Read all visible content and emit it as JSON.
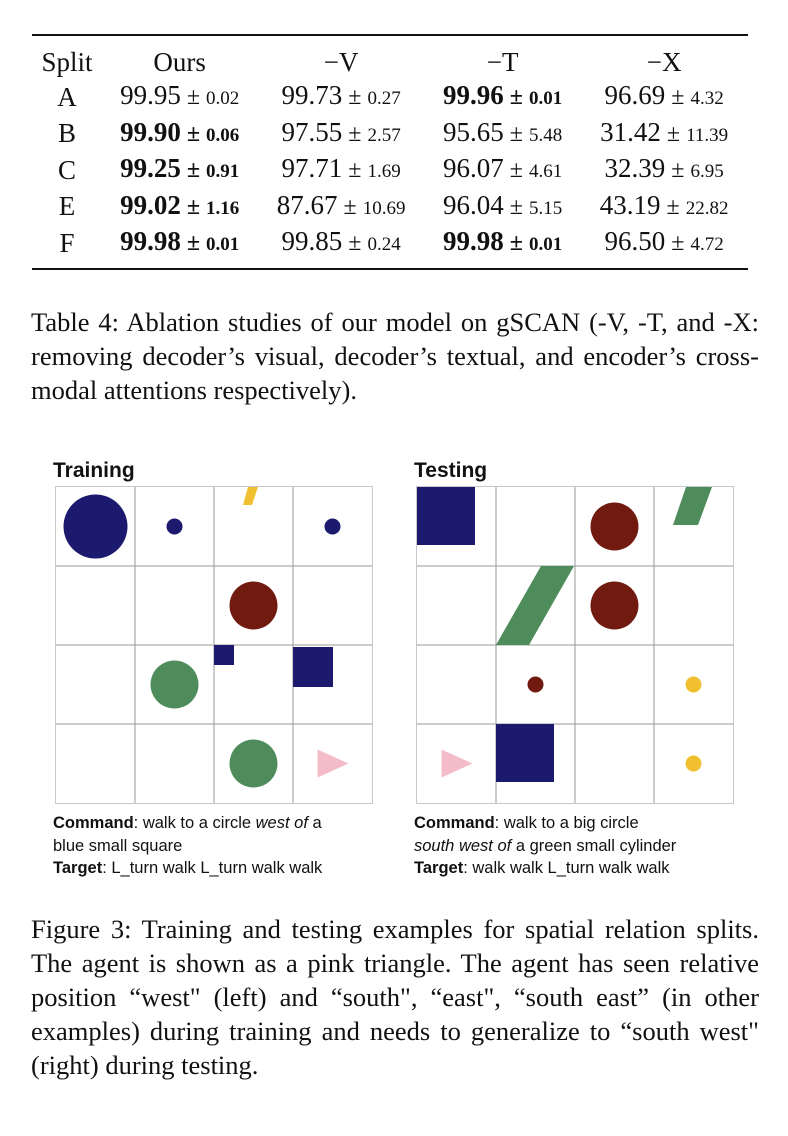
{
  "table": {
    "headers": [
      "Split",
      "Ours",
      "−V",
      "−T",
      "−X"
    ],
    "rows": [
      {
        "split": "A",
        "cells": [
          {
            "v": "99.95",
            "sd": "0.02",
            "best": false
          },
          {
            "v": "99.73",
            "sd": "0.27",
            "best": false
          },
          {
            "v": "99.96",
            "sd": "0.01",
            "best": true
          },
          {
            "v": "96.69",
            "sd": "4.32",
            "best": false
          }
        ]
      },
      {
        "split": "B",
        "cells": [
          {
            "v": "99.90",
            "sd": "0.06",
            "best": true
          },
          {
            "v": "97.55",
            "sd": "2.57",
            "best": false
          },
          {
            "v": "95.65",
            "sd": "5.48",
            "best": false
          },
          {
            "v": "31.42",
            "sd": "11.39",
            "best": false
          }
        ]
      },
      {
        "split": "C",
        "cells": [
          {
            "v": "99.25",
            "sd": "0.91",
            "best": true
          },
          {
            "v": "97.71",
            "sd": "1.69",
            "best": false
          },
          {
            "v": "96.07",
            "sd": "4.61",
            "best": false
          },
          {
            "v": "32.39",
            "sd": "6.95",
            "best": false
          }
        ]
      },
      {
        "split": "E",
        "cells": [
          {
            "v": "99.02",
            "sd": "1.16",
            "best": true
          },
          {
            "v": "87.67",
            "sd": "10.69",
            "best": false
          },
          {
            "v": "96.04",
            "sd": "5.15",
            "best": false
          },
          {
            "v": "43.19",
            "sd": "22.82",
            "best": false
          }
        ]
      },
      {
        "split": "F",
        "cells": [
          {
            "v": "99.98",
            "sd": "0.01",
            "best": true
          },
          {
            "v": "99.85",
            "sd": "0.24",
            "best": false
          },
          {
            "v": "99.98",
            "sd": "0.01",
            "best": true
          },
          {
            "v": "96.50",
            "sd": "4.72",
            "best": false
          }
        ]
      }
    ],
    "pm_sign": "±"
  },
  "table_caption": "Table 4: Ablation studies of our model on gSCAN (-V, -T, and -X: removing decoder’s visual, decoder’s textual, and encoder’s cross-modal attentions respectively).",
  "figure": {
    "colors": {
      "blue": "#1c1a6e",
      "red": "#701a10",
      "green": "#4f8c5c",
      "yellow": "#f1c030",
      "pink": "#f3bcc8",
      "gridline": "#9a9a9a"
    },
    "panels": [
      {
        "title": "Training",
        "objects": [
          {
            "kind": "circle",
            "color": "blue",
            "row": 0,
            "col": 0,
            "size": "big"
          },
          {
            "kind": "circle",
            "color": "blue",
            "row": 0,
            "col": 1,
            "size": "small"
          },
          {
            "kind": "cylinder",
            "color": "yellow",
            "row": 0,
            "col": 2,
            "size": "small"
          },
          {
            "kind": "circle",
            "color": "blue",
            "row": 0,
            "col": 3,
            "size": "small"
          },
          {
            "kind": "circle",
            "color": "red",
            "row": 1,
            "col": 2,
            "size": "medium"
          },
          {
            "kind": "circle",
            "color": "green",
            "row": 2,
            "col": 1,
            "size": "medium"
          },
          {
            "kind": "square",
            "color": "blue",
            "row": 2,
            "col": 2,
            "size": "small"
          },
          {
            "kind": "square",
            "color": "blue",
            "row": 2,
            "col": 3,
            "size": "medium"
          },
          {
            "kind": "circle",
            "color": "green",
            "row": 3,
            "col": 2,
            "size": "medium"
          },
          {
            "kind": "agent",
            "color": "pink",
            "row": 3,
            "col": 3,
            "size": "medium"
          }
        ],
        "command_label": "Command",
        "command_parts": [
          {
            "text": ": walk to a circle ",
            "italic": false
          },
          {
            "text": "west of",
            "italic": true
          },
          {
            "text": " a",
            "italic": false
          }
        ],
        "command_line2": [
          {
            "text": "blue small square",
            "italic": false
          }
        ],
        "target_label": "Target",
        "target_text": ": L_turn walk L_turn walk walk"
      },
      {
        "title": "Testing",
        "objects": [
          {
            "kind": "square",
            "color": "blue",
            "row": 0,
            "col": 0,
            "size": "medium"
          },
          {
            "kind": "circle",
            "color": "red",
            "row": 0,
            "col": 2,
            "size": "medium"
          },
          {
            "kind": "cylinder",
            "color": "green",
            "row": 0,
            "col": 3,
            "size": "small"
          },
          {
            "kind": "cylinder",
            "color": "green",
            "row": 1,
            "col": 1,
            "size": "big"
          },
          {
            "kind": "circle",
            "color": "red",
            "row": 1,
            "col": 2,
            "size": "medium"
          },
          {
            "kind": "circle",
            "color": "red",
            "row": 2,
            "col": 1,
            "size": "small"
          },
          {
            "kind": "circle",
            "color": "yellow",
            "row": 2,
            "col": 3,
            "size": "small"
          },
          {
            "kind": "agent",
            "color": "pink",
            "row": 3,
            "col": 0,
            "size": "medium"
          },
          {
            "kind": "square",
            "color": "blue",
            "row": 3,
            "col": 1,
            "size": "medium"
          },
          {
            "kind": "circle",
            "color": "yellow",
            "row": 3,
            "col": 3,
            "size": "small"
          }
        ],
        "command_label": "Command",
        "command_parts": [
          {
            "text": ": walk to a big circle",
            "italic": false
          }
        ],
        "command_line2": [
          {
            "text": "south west of",
            "italic": true
          },
          {
            "text": " a green small cylinder",
            "italic": false
          }
        ],
        "target_label": "Target",
        "target_text": ": walk walk L_turn walk walk"
      }
    ]
  },
  "figure_caption": "Figure 3: Training and testing examples for spatial relation splits. The agent is shown as a pink triangle. The agent has seen relative position “west\" (left) and “south\", “east\", “south east” (in other examples) during training and needs to generalize to “south west\" (right) during testing."
}
